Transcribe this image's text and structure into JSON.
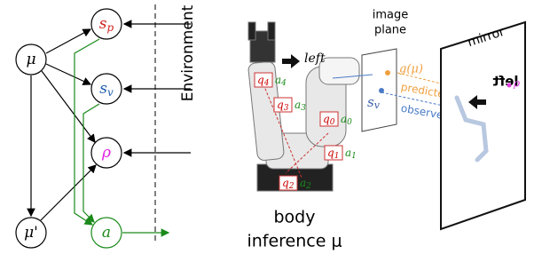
{
  "graph": {
    "nodes": [
      {
        "label": "μ"
      },
      {
        "label": "s",
        "sub": "p"
      },
      {
        "label": "s",
        "sub": "v"
      },
      {
        "label": "ρ"
      },
      {
        "label": "μ'"
      },
      {
        "label": "a"
      }
    ],
    "environment": "Environment"
  },
  "robot": {
    "caption": [
      "body",
      "inference μ"
    ],
    "direction": "left",
    "joints": [
      {
        "q": "q",
        "q_sub": "4",
        "a": "a",
        "a_sub": "4"
      },
      {
        "q": "q",
        "q_sub": "3",
        "a": "a",
        "a_sub": "3"
      },
      {
        "q": "q",
        "q_sub": "0",
        "a": "a",
        "a_sub": "0"
      },
      {
        "q": "q",
        "q_sub": "1",
        "a": "a",
        "a_sub": "1"
      },
      {
        "q": "q",
        "q_sub": "2",
        "a": "a",
        "a_sub": "2"
      }
    ]
  },
  "camera": {
    "title": [
      "image",
      "plane"
    ],
    "projection": "g(μ)",
    "observation": {
      "label": "s",
      "sub": "v"
    },
    "predicted": "predicted",
    "observed": "observed"
  },
  "mirror": {
    "title": "mirror",
    "reflected_text": "left",
    "marker": "ρ"
  }
}
